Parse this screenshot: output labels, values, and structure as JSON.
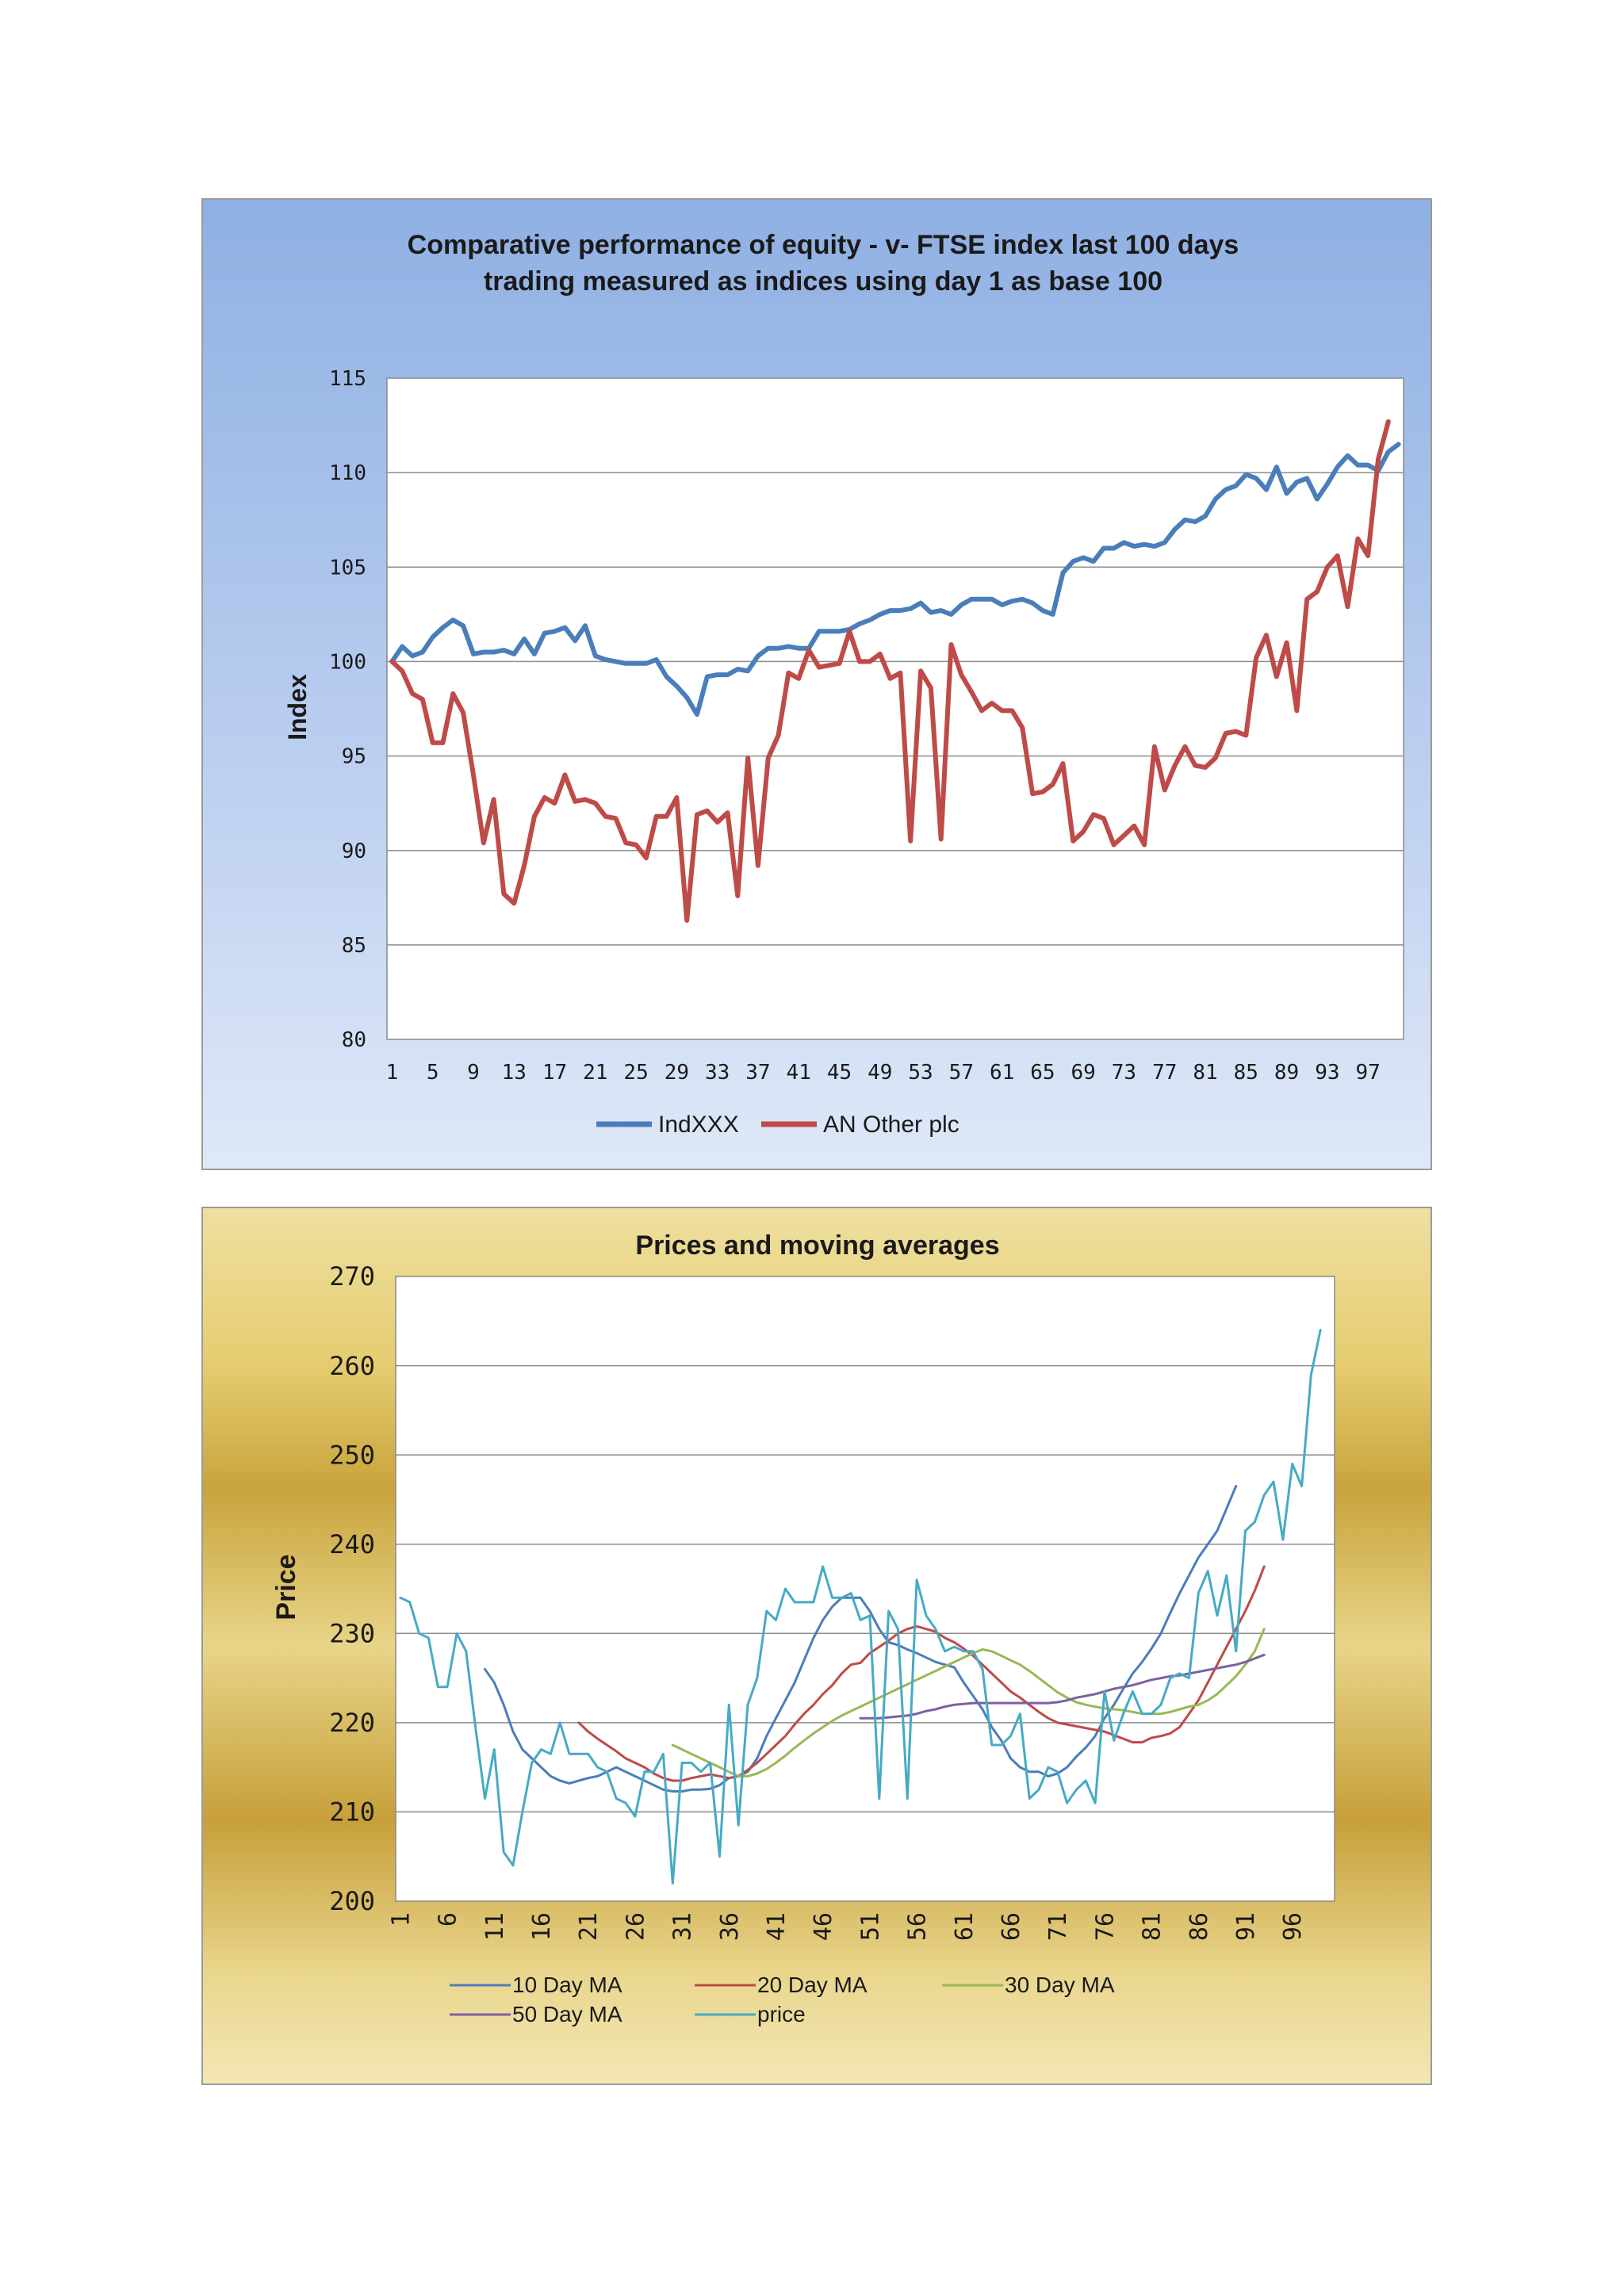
{
  "chart_data": [
    {
      "type": "line",
      "title_line1": "Comparative performance of equity - v-  FTSE index last 100 days",
      "title_line2": "trading  measured as indices using day 1 as base 100",
      "ylabel": "Index",
      "xlabel": "",
      "ylim": [
        80,
        115
      ],
      "yticks": [
        80,
        85,
        90,
        95,
        100,
        105,
        110,
        115
      ],
      "xtick_labels": [
        "1",
        "5",
        "9",
        "13",
        "17",
        "21",
        "25",
        "29",
        "33",
        "37",
        "41",
        "45",
        "49",
        "53",
        "57",
        "61",
        "65",
        "69",
        "73",
        "77",
        "81",
        "85",
        "89",
        "93",
        "97"
      ],
      "xtick_step": 4,
      "n_points": 100,
      "legend": [
        "IndXXX",
        "AN Other plc"
      ],
      "colors": [
        "#4a7ebb",
        "#be4b48"
      ],
      "series": [
        {
          "name": "IndXXX",
          "values": [
            100,
            100.8,
            100.3,
            100.5,
            101.3,
            101.8,
            102.2,
            101.9,
            100.4,
            100.5,
            100.5,
            100.6,
            100.4,
            101.2,
            100.4,
            101.5,
            101.6,
            101.8,
            101.1,
            101.9,
            100.3,
            100.1,
            100,
            99.9,
            99.9,
            99.9,
            100.1,
            99.2,
            98.7,
            98.1,
            97.2,
            99.2,
            99.3,
            99.3,
            99.6,
            99.5,
            100.3,
            100.7,
            100.7,
            100.8,
            100.7,
            100.7,
            101.6,
            101.6,
            101.6,
            101.7,
            102,
            102.2,
            102.5,
            102.7,
            102.7,
            102.8,
            103.1,
            102.6,
            102.7,
            102.5,
            103,
            103.3,
            103.3,
            103.3,
            103,
            103.2,
            103.3,
            103.1,
            102.7,
            102.5,
            104.7,
            105.3,
            105.5,
            105.3,
            106,
            106,
            106.3,
            106.1,
            106.2,
            106.1,
            106.3,
            107,
            107.5,
            107.4,
            107.7,
            108.6,
            109.1,
            109.3,
            109.9,
            109.7,
            109.1,
            110.3,
            108.9,
            109.5,
            109.7,
            108.6,
            109.4,
            110.3,
            110.9,
            110.4,
            110.4,
            110.1,
            111.1,
            111.5
          ]
        },
        {
          "name": "AN Other plc",
          "values": [
            100,
            99.5,
            98.3,
            98,
            95.7,
            95.7,
            98.3,
            97.3,
            94,
            90.4,
            92.7,
            87.7,
            87.2,
            89.2,
            91.8,
            92.8,
            92.5,
            94,
            92.6,
            92.7,
            92.5,
            91.8,
            91.7,
            90.4,
            90.3,
            89.6,
            91.8,
            91.8,
            92.8,
            86.3,
            91.9,
            92.1,
            91.5,
            92,
            87.6,
            94.9,
            89.2,
            94.9,
            96.1,
            99.4,
            99.1,
            100.6,
            99.7,
            99.8,
            99.9,
            101.6,
            100,
            100,
            100.4,
            99.1,
            99.4,
            90.5,
            99.5,
            98.6,
            90.6,
            100.9,
            99.3,
            98.4,
            97.4,
            97.8,
            97.4,
            97.4,
            96.5,
            93,
            93.1,
            93.5,
            94.6,
            90.5,
            91,
            91.9,
            91.7,
            90.3,
            90.8,
            91.3,
            90.3,
            95.5,
            93.2,
            94.5,
            95.5,
            94.5,
            94.4,
            94.9,
            96.2,
            96.3,
            96.1,
            100.2,
            101.4,
            99.2,
            101,
            97.4,
            103.3,
            103.7,
            105,
            105.6,
            102.9,
            106.5,
            105.6,
            110.7,
            112.7
          ]
        }
      ]
    },
    {
      "type": "line",
      "title": "Prices and moving   averages",
      "ylabel": "Price",
      "xlabel": "",
      "ylim": [
        200,
        270
      ],
      "yticks": [
        200,
        210,
        220,
        230,
        240,
        250,
        260,
        270
      ],
      "xtick_labels": [
        "1",
        "6",
        "11",
        "16",
        "21",
        "26",
        "31",
        "36",
        "41",
        "46",
        "51",
        "56",
        "61",
        "66",
        "71",
        "76",
        "81",
        "86",
        "91",
        "96"
      ],
      "xtick_step": 5,
      "n_points": 100,
      "legend": [
        "10 Day  MA",
        "20 Day  MA",
        "30 Day  MA",
        "50 Day  MA",
        "price"
      ],
      "colors": [
        "#4a7ebb",
        "#be4b48",
        "#98b954",
        "#7d60a0",
        "#46aac5"
      ],
      "series": [
        {
          "name": "10 Day  MA",
          "start": 10,
          "values": [
            226,
            224.5,
            222,
            219,
            217,
            216,
            215,
            214,
            213.5,
            213.2,
            213.5,
            213.8,
            214,
            214.5,
            215,
            214.5,
            214,
            213.5,
            213,
            212.5,
            212.3,
            212.3,
            212.5,
            212.5,
            212.6,
            213,
            213.8,
            214,
            214.5,
            216,
            218.5,
            220.5,
            222.5,
            224.5,
            227,
            229.5,
            231.5,
            233,
            234,
            234,
            234,
            232.5,
            230.5,
            229,
            228.7,
            228.2,
            227.8,
            227.3,
            226.8,
            226.5,
            226.2,
            224.5,
            223,
            221.5,
            219.5,
            218,
            216,
            215,
            214.5,
            214.5,
            214,
            214.3,
            215,
            216.2,
            217.2,
            218.5,
            220.5,
            222,
            223.8,
            225.5,
            226.8,
            228.3,
            230,
            232.3,
            234.5,
            236.5,
            238.5,
            240,
            241.5,
            244,
            246.5
          ]
        },
        {
          "name": "20 Day  MA",
          "start": 20,
          "values": [
            220,
            219,
            218.2,
            217.5,
            216.8,
            216,
            215.5,
            215,
            214.3,
            213.8,
            213.5,
            213.5,
            213.8,
            214,
            214.2,
            214,
            213.8,
            214,
            214.7,
            215.5,
            216.5,
            217.5,
            218.5,
            219.8,
            221,
            222,
            223.2,
            224.2,
            225.5,
            226.5,
            226.7,
            227.8,
            228.5,
            229.2,
            230,
            230.5,
            230.8,
            230.5,
            230.2,
            229.5,
            229,
            228.3,
            227.5,
            226.5,
            225.5,
            224.5,
            223.5,
            222.8,
            222,
            221.2,
            220.5,
            220,
            219.8,
            219.6,
            219.4,
            219.2,
            219,
            218.6,
            218.2,
            217.8,
            217.8,
            218.3,
            218.5,
            218.8,
            219.5,
            221,
            222.5,
            224.5,
            226.5,
            228.5,
            230.5,
            232.5,
            234.8,
            237.5
          ]
        },
        {
          "name": "30 Day  MA",
          "start": 30,
          "values": [
            217.5,
            217,
            216.5,
            216,
            215.5,
            215,
            214.5,
            214,
            214,
            214.3,
            214.8,
            215.5,
            216.3,
            217.2,
            218,
            218.8,
            219.5,
            220.2,
            220.8,
            221.3,
            221.8,
            222.3,
            222.8,
            223.3,
            223.8,
            224.3,
            224.8,
            225.3,
            225.8,
            226.3,
            226.8,
            227.3,
            227.8,
            228.2,
            228,
            227.5,
            227,
            226.5,
            225.8,
            225,
            224.2,
            223.4,
            222.8,
            222.3,
            222,
            221.8,
            221.6,
            221.5,
            221.4,
            221.2,
            221,
            221,
            221,
            221.2,
            221.5,
            221.8,
            222,
            222.5,
            223.2,
            224.2,
            225.2,
            226.5,
            228,
            230.5
          ]
        },
        {
          "name": "50 Day  MA",
          "start": 50,
          "values": [
            220.5,
            220.5,
            220.5,
            220.6,
            220.7,
            220.8,
            221,
            221.3,
            221.5,
            221.8,
            222,
            222.1,
            222.2,
            222.2,
            222.2,
            222.2,
            222.2,
            222.2,
            222.2,
            222.2,
            222.2,
            222.3,
            222.5,
            222.8,
            223,
            223.2,
            223.5,
            223.8,
            224,
            224.2,
            224.5,
            224.8,
            225,
            225.2,
            225.3,
            225.5,
            225.7,
            225.9,
            226.1,
            226.3,
            226.5,
            226.8,
            227.2,
            227.6
          ]
        },
        {
          "name": "price",
          "start": 1,
          "values": [
            234,
            233.5,
            230,
            229.5,
            224,
            224,
            230,
            228,
            219.5,
            211.5,
            217,
            205.5,
            204,
            210,
            215.5,
            217,
            216.5,
            220,
            216.5,
            216.5,
            216.5,
            215,
            214.5,
            211.5,
            211,
            209.5,
            214.5,
            214.5,
            216.5,
            202,
            215.5,
            215.5,
            214.5,
            215.5,
            205,
            222,
            208.5,
            222,
            225,
            232.5,
            231.5,
            235,
            233.5,
            233.5,
            233.5,
            237.5,
            234,
            234,
            234.5,
            231.5,
            232,
            211.5,
            232.5,
            230.5,
            211.5,
            236,
            232,
            230.5,
            228,
            228.5,
            228,
            228,
            226,
            217.5,
            217.5,
            218.5,
            221,
            211.5,
            212.5,
            215,
            214.5,
            211,
            212.5,
            213.5,
            211,
            223.5,
            218,
            221,
            223.5,
            221,
            221,
            222,
            225,
            225.5,
            225,
            234.5,
            237,
            232,
            236.5,
            228,
            241.5,
            242.5,
            245.5,
            247,
            240.5,
            249,
            246.5,
            259,
            264
          ]
        }
      ]
    }
  ]
}
